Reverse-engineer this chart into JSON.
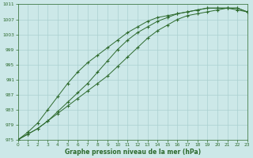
{
  "xlabel": "Graphe pression niveau de la mer (hPa)",
  "xlim": [
    0,
    23
  ],
  "ylim": [
    975,
    1011
  ],
  "yticks": [
    975,
    979,
    983,
    987,
    991,
    995,
    999,
    1003,
    1007,
    1011
  ],
  "xticks": [
    0,
    1,
    2,
    3,
    4,
    5,
    6,
    7,
    8,
    9,
    10,
    11,
    12,
    13,
    14,
    15,
    16,
    17,
    18,
    19,
    20,
    21,
    22,
    23
  ],
  "bg_color": "#cce8e8",
  "grid_color": "#aad0d0",
  "line_color": "#2d6a2d",
  "line1_y": [
    975,
    976.5,
    978,
    980,
    982.5,
    985,
    987.5,
    990,
    993,
    996,
    999,
    1001.5,
    1003.5,
    1005,
    1006.5,
    1007.5,
    1008.5,
    1009,
    1009.5,
    1010,
    1010,
    1010,
    1009.5,
    1009
  ],
  "line2_y": [
    975,
    977,
    979.5,
    983,
    986.5,
    990,
    993,
    995.5,
    997.5,
    999.5,
    1001.5,
    1003.5,
    1005,
    1006.5,
    1007.5,
    1008,
    1008.5,
    1009,
    1009.5,
    1010,
    1010,
    1010,
    1010,
    1009
  ],
  "line3_y": [
    975,
    976.5,
    978,
    980,
    982,
    984,
    986,
    988,
    990,
    992,
    994.5,
    997,
    999.5,
    1002,
    1004,
    1005.5,
    1007,
    1008,
    1008.5,
    1009,
    1009.5,
    1010,
    1010,
    1009
  ]
}
